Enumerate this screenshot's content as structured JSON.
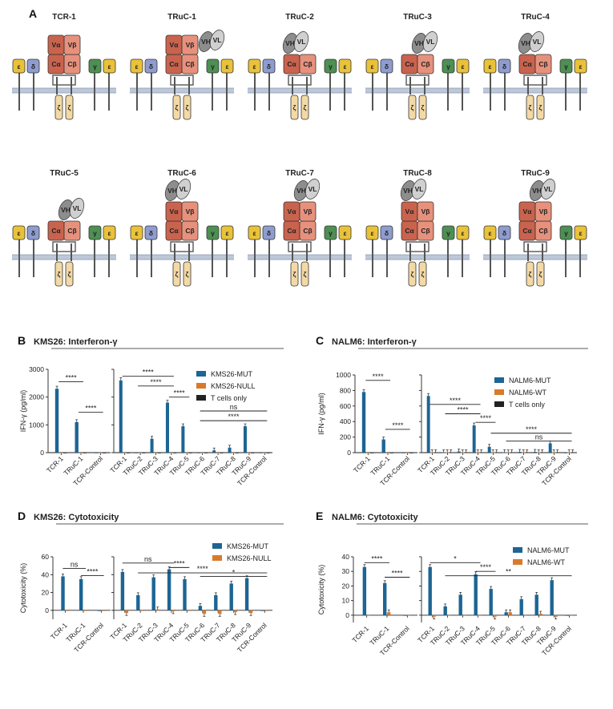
{
  "colors": {
    "mut": "#1d6594",
    "null": "#d97a2b",
    "tonly": "#222222",
    "alpha": "#c9634e",
    "beta": "#e7917c",
    "eps": "#e9c23a",
    "delta": "#8f9ccf",
    "gamma": "#4e8f53",
    "zeta": "#f3d9a5",
    "vh": "#8d8d8d",
    "vl": "#d0d0d0",
    "membrane": "#bcc8d8",
    "stalk": "#555555"
  },
  "panel_a": {
    "label": "A",
    "constructs": [
      {
        "name": "TCR-1",
        "ab": "Vab",
        "scfv": "none"
      },
      {
        "name": "TRuC-1",
        "ab": "Vab",
        "scfv": "epsilon"
      },
      {
        "name": "TRuC-2",
        "ab": "C",
        "scfv": "alpha"
      },
      {
        "name": "TRuC-3",
        "ab": "C",
        "scfv": "beta"
      },
      {
        "name": "TRuC-4",
        "ab": "C",
        "scfv": "alpha"
      },
      {
        "name": "TRuC-5",
        "ab": "C",
        "scfv": "beta"
      },
      {
        "name": "TRuC-6",
        "ab": "Vab",
        "scfv": "alpha"
      },
      {
        "name": "TRuC-7",
        "ab": "Vab",
        "scfv": "beta"
      },
      {
        "name": "TRuC-8",
        "ab": "Vab",
        "scfv": "alpha"
      },
      {
        "name": "TRuC-9",
        "ab": "Vab",
        "scfv": "beta"
      }
    ],
    "chain_labels": {
      "va": "Vα",
      "vb": "Vβ",
      "ca": "Cα",
      "cb": "Cβ",
      "eps": "ε",
      "delta": "δ",
      "gamma": "γ",
      "zeta": "ζ",
      "vh": "VH",
      "vl": "VL"
    }
  },
  "chart_data": [
    {
      "id": "B",
      "label": "B",
      "title": "KMS26: Interferon-γ",
      "type": "bar",
      "ylabel": "IFN-γ (pg/ml)",
      "ylim": [
        0,
        3000
      ],
      "yticks": [
        0,
        1000,
        2000,
        3000
      ],
      "legend": [
        "KMS26-MUT",
        "KMS26-NULL",
        "T cells only"
      ],
      "left": {
        "categories": [
          "TCR-1",
          "TRuC-1",
          "TCR-Control"
        ],
        "series": [
          {
            "name": "KMS26-MUT",
            "values": [
              2300,
              1100,
              0
            ]
          },
          {
            "name": "KMS26-NULL",
            "values": [
              0,
              0,
              0
            ]
          },
          {
            "name": "T cells only",
            "values": [
              0,
              0,
              0
            ]
          }
        ]
      },
      "right": {
        "categories": [
          "TCR-1",
          "TRuC-2",
          "TRuC-3",
          "TRuC-4",
          "TRuC-5",
          "TRuC-6",
          "TRuC-7",
          "TRuC-8",
          "TRuC-9",
          "TCR-Control"
        ],
        "series": [
          {
            "name": "KMS26-MUT",
            "values": [
              2600,
              0,
              500,
              1800,
              950,
              0,
              80,
              180,
              950,
              0
            ]
          },
          {
            "name": "KMS26-NULL",
            "values": [
              0,
              0,
              0,
              0,
              0,
              0,
              0,
              0,
              0,
              0
            ]
          },
          {
            "name": "T cells only",
            "values": [
              0,
              0,
              0,
              0,
              0,
              0,
              0,
              0,
              0,
              0
            ]
          }
        ]
      },
      "sig_left": [
        {
          "from": 0,
          "to": 1,
          "label": "****",
          "y": 2550
        },
        {
          "from": 1,
          "to": 2,
          "label": "****",
          "y": 1450
        }
      ],
      "sig_right": [
        {
          "from": 0,
          "to": 3,
          "label": "****",
          "y": 2750
        },
        {
          "from": 1,
          "to": 3,
          "label": "****",
          "y": 2400
        },
        {
          "from": 3,
          "to": 4,
          "label": "****",
          "y": 2000
        },
        {
          "from": 5,
          "to": 9,
          "label": "ns",
          "y": 1500
        },
        {
          "from": 5,
          "to": 9,
          "label": "****",
          "y": 1150
        }
      ]
    },
    {
      "id": "C",
      "label": "C",
      "title": "NALM6: Interferon-γ",
      "type": "bar",
      "ylabel": "IFN-γ (pg/ml)",
      "ylim": [
        0,
        1000
      ],
      "yticks": [
        0,
        200,
        400,
        600,
        800,
        1000
      ],
      "legend": [
        "NALM6-MUT",
        "NALM6-WT",
        "T cells only"
      ],
      "left": {
        "categories": [
          "TCR-1",
          "TRuC-1",
          "TCR-Control"
        ],
        "series": [
          {
            "name": "NALM6-MUT",
            "values": [
              780,
              170,
              0
            ]
          },
          {
            "name": "NALM6-WT",
            "values": [
              0,
              0,
              0
            ]
          },
          {
            "name": "T cells only",
            "values": [
              0,
              0,
              0
            ]
          }
        ]
      },
      "right": {
        "categories": [
          "TCR-1",
          "TRuC-2",
          "TRuC-3",
          "TRuC-4",
          "TRuC-5",
          "TRuC-6",
          "TRuC-7",
          "TRuC-8",
          "TRuC-9",
          "TCR-Control"
        ],
        "series": [
          {
            "name": "NALM6-MUT",
            "values": [
              730,
              5,
              15,
              350,
              75,
              5,
              10,
              10,
              120,
              0
            ]
          },
          {
            "name": "NALM6-WT",
            "values": [
              5,
              5,
              5,
              5,
              5,
              5,
              5,
              5,
              5,
              5
            ]
          },
          {
            "name": "T cells only",
            "values": [
              5,
              5,
              5,
              5,
              5,
              5,
              5,
              5,
              5,
              5
            ]
          }
        ]
      },
      "sig_left": [
        {
          "from": 0,
          "to": 1,
          "label": "****",
          "y": 930
        },
        {
          "from": 1,
          "to": 2,
          "label": "****",
          "y": 300
        }
      ],
      "sig_right": [
        {
          "from": 0,
          "to": 3,
          "label": "****",
          "y": 620
        },
        {
          "from": 1,
          "to": 3,
          "label": "****",
          "y": 500
        },
        {
          "from": 3,
          "to": 4,
          "label": "****",
          "y": 390
        },
        {
          "from": 4,
          "to": 9,
          "label": "****",
          "y": 250
        },
        {
          "from": 5,
          "to": 9,
          "label": "ns",
          "y": 150
        }
      ]
    },
    {
      "id": "D",
      "label": "D",
      "title": "KMS26: Cytotoxicity",
      "type": "bar",
      "ylabel": "Cytotoxicity (%)",
      "ylim": [
        -10,
        60
      ],
      "yticks": [
        0,
        20,
        40,
        60
      ],
      "legend": [
        "KMS26-MUT",
        "KMS26-NULL"
      ],
      "left": {
        "categories": [
          "TCR-1",
          "TRuC-1",
          "TCR-Control"
        ],
        "series": [
          {
            "name": "KMS26-MUT",
            "values": [
              38,
              35,
              0
            ]
          },
          {
            "name": "KMS26-NULL",
            "values": [
              0,
              0,
              0
            ]
          }
        ]
      },
      "right": {
        "categories": [
          "TCR-1",
          "TRuC-2",
          "TRuC-3",
          "TRuC-4",
          "TRuC-5",
          "TRuC-6",
          "TRuC-7",
          "TRuC-8",
          "TRuC-9",
          "TCR-Control"
        ],
        "series": [
          {
            "name": "KMS26-MUT",
            "values": [
              43,
              17,
              37,
              46,
              35,
              5,
              17,
              30,
              36,
              0
            ]
          },
          {
            "name": "KMS26-NULL",
            "values": [
              -3,
              0,
              1,
              -1,
              0,
              -4,
              -4,
              -2,
              -3,
              0
            ]
          }
        ]
      },
      "sig_left": [
        {
          "from": 0,
          "to": 1,
          "label": "ns",
          "y": 47
        },
        {
          "from": 1,
          "to": 2,
          "label": "****",
          "y": 39
        }
      ],
      "sig_right": [
        {
          "from": 0,
          "to": 3,
          "label": "ns",
          "y": 53
        },
        {
          "from": 3,
          "to": 4,
          "label": "****",
          "y": 48
        },
        {
          "from": 1,
          "to": 9,
          "label": "****",
          "y": 42
        },
        {
          "from": 5,
          "to": 9,
          "label": "*",
          "y": 38
        }
      ]
    },
    {
      "id": "E",
      "label": "E",
      "title": "NALM6: Cytotoxicity",
      "type": "bar",
      "ylabel": "Cytotoxicity (%)",
      "ylim": [
        -5,
        40
      ],
      "yticks": [
        0,
        10,
        20,
        30,
        40
      ],
      "legend": [
        "NALM6-MUT",
        "NALM6-WT"
      ],
      "left": {
        "categories": [
          "TCR-1",
          "TRuC-1",
          "TCR-Control"
        ],
        "series": [
          {
            "name": "NALM6-MUT",
            "values": [
              33,
              22,
              0
            ]
          },
          {
            "name": "NALM6-WT",
            "values": [
              0,
              2,
              0
            ]
          }
        ]
      },
      "right": {
        "categories": [
          "TCR-1",
          "TRuC-2",
          "TRuC-3",
          "TRuC-4",
          "TRuC-5",
          "TRuC-6",
          "TRuC-7",
          "TRuC-8",
          "TRuC-9",
          "TCR-Control"
        ],
        "series": [
          {
            "name": "NALM6-MUT",
            "values": [
              33,
              6,
              14,
              28,
              18,
              2,
              11,
              14,
              24,
              0
            ]
          },
          {
            "name": "NALM6-WT",
            "values": [
              -1,
              0,
              0,
              0,
              -1,
              2,
              0,
              1,
              -1,
              0
            ]
          }
        ]
      },
      "sig_left": [
        {
          "from": 0,
          "to": 1,
          "label": "****",
          "y": 36
        },
        {
          "from": 1,
          "to": 2,
          "label": "****",
          "y": 26
        }
      ],
      "sig_right": [
        {
          "from": 0,
          "to": 3,
          "label": "*",
          "y": 36
        },
        {
          "from": 3,
          "to": 4,
          "label": "****",
          "y": 30
        },
        {
          "from": 1,
          "to": 9,
          "label": "**",
          "y": 27
        }
      ]
    }
  ]
}
